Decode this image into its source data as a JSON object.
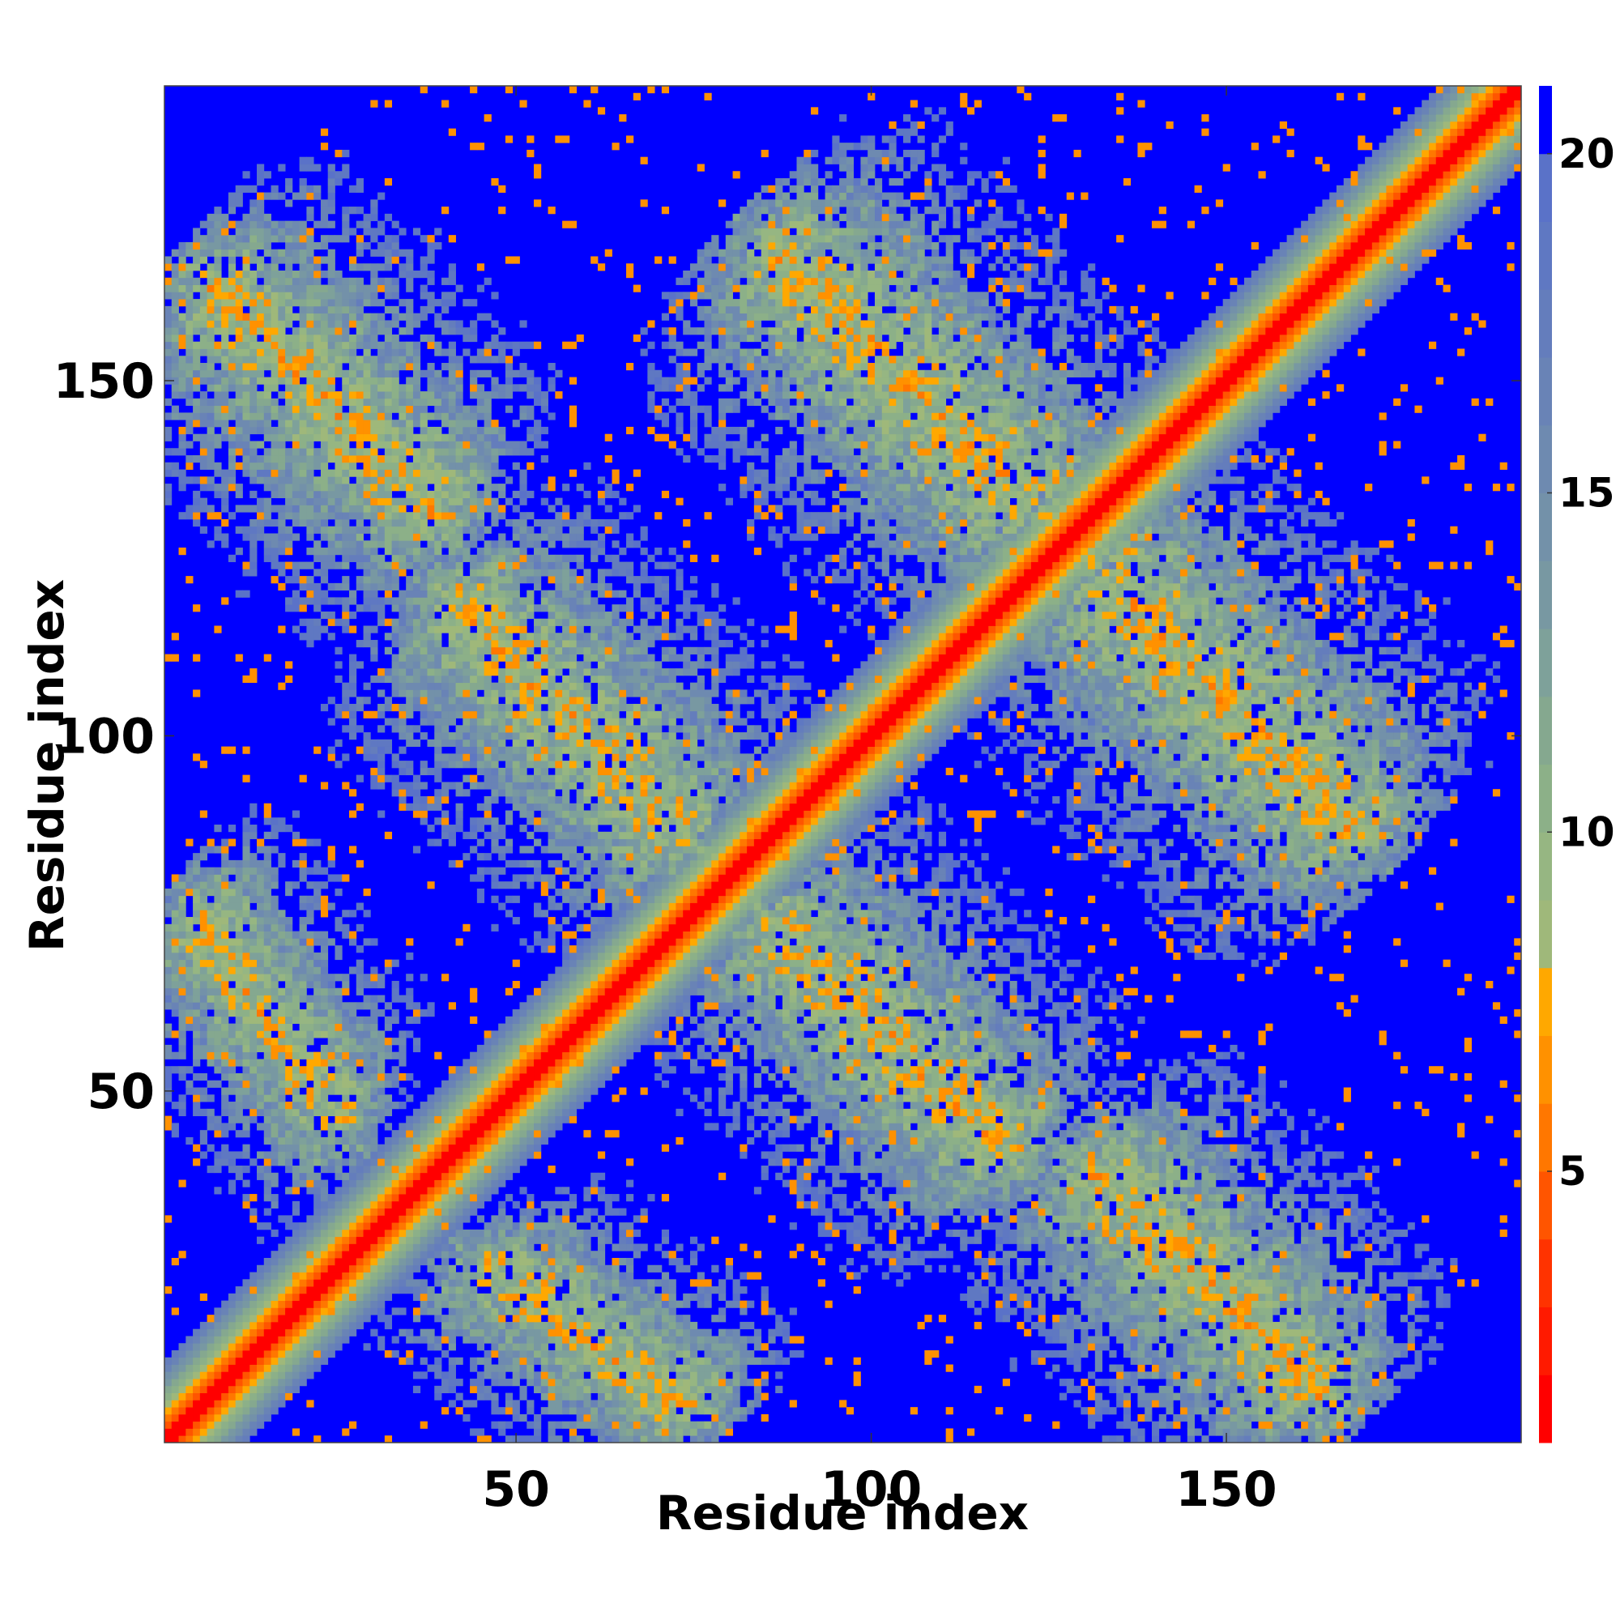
{
  "chart_data": {
    "type": "heatmap",
    "title": "",
    "xlabel": "Residue index",
    "ylabel": "Residue index",
    "xlim": [
      1,
      191
    ],
    "ylim": [
      1,
      191
    ],
    "x_ticks": [
      50,
      100,
      150
    ],
    "y_ticks": [
      50,
      100,
      150
    ],
    "n_residues": 191,
    "colorbar": {
      "range": [
        1,
        21
      ],
      "ticks": [
        5,
        10,
        15,
        20
      ],
      "levels": [
        {
          "upper": 2,
          "color": "#ff0000"
        },
        {
          "upper": 3,
          "color": "#ff1a00"
        },
        {
          "upper": 4,
          "color": "#ff3300"
        },
        {
          "upper": 5,
          "color": "#ff5500"
        },
        {
          "upper": 6,
          "color": "#ff7700"
        },
        {
          "upper": 7,
          "color": "#ff9100"
        },
        {
          "upper": 8,
          "color": "#ffa800"
        },
        {
          "upper": 9,
          "color": "#9fb87a"
        },
        {
          "upper": 10,
          "color": "#96b682"
        },
        {
          "upper": 11,
          "color": "#8cb088"
        },
        {
          "upper": 12,
          "color": "#85a88f"
        },
        {
          "upper": 13,
          "color": "#7ea19a"
        },
        {
          "upper": 14,
          "color": "#7898a2"
        },
        {
          "upper": 15,
          "color": "#7391a9"
        },
        {
          "upper": 16,
          "color": "#6e8ab0"
        },
        {
          "upper": 17,
          "color": "#6983b6"
        },
        {
          "upper": 18,
          "color": "#647dbc"
        },
        {
          "upper": 19,
          "color": "#5f78c2"
        },
        {
          "upper": 20,
          "color": "#5a72c8"
        },
        {
          "upper": 21,
          "color": "#0000ff"
        }
      ]
    },
    "description_of_cells": "Symmetric residue distance map: values approx 1-6 along the main diagonal band, rising to about 14 at offset 8, capped at 21 (blue) beyond ~20",
    "contact_bands": [
      {
        "i_range": [
          1,
          45
        ],
        "j_range": [
          125,
          170
        ],
        "orientation": "anti"
      },
      {
        "i_range": [
          35,
          80
        ],
        "j_range": [
          80,
          125
        ],
        "orientation": "anti"
      },
      {
        "i_range": [
          80,
          130
        ],
        "j_range": [
          125,
          175
        ],
        "orientation": "anti"
      },
      {
        "i_range": [
          1,
          30
        ],
        "j_range": [
          40,
          80
        ],
        "orientation": "anti"
      },
      {
        "i_range": [
          40,
          80
        ],
        "j_range": [
          1,
          40
        ],
        "orientation": "anti"
      },
      {
        "i_range": [
          85,
          125
        ],
        "j_range": [
          40,
          85
        ],
        "orientation": "anti"
      },
      {
        "i_range": [
          125,
          165
        ],
        "j_range": [
          1,
          50
        ],
        "orientation": "anti"
      },
      {
        "i_range": [
          125,
          175
        ],
        "j_range": [
          80,
          125
        ],
        "orientation": "anti"
      }
    ]
  }
}
